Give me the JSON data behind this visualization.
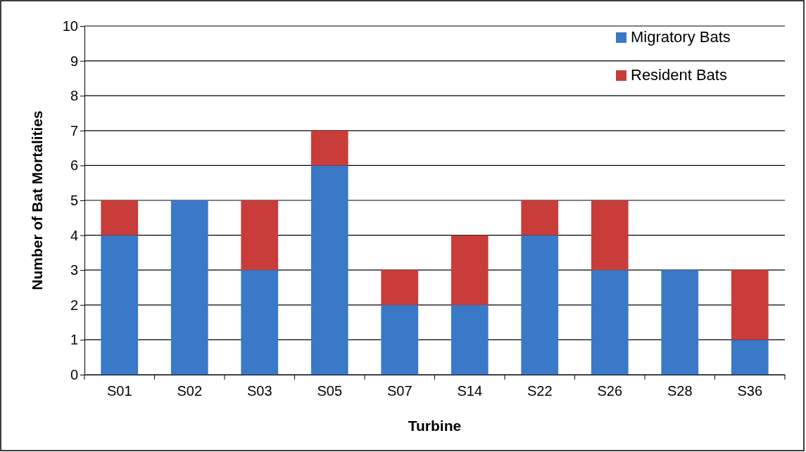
{
  "chart_data": {
    "type": "bar",
    "stacked": true,
    "xlabel": "Turbine",
    "ylabel": "Number of Bat Mortalities",
    "categories": [
      "S01",
      "S02",
      "S03",
      "S05",
      "S07",
      "S14",
      "S22",
      "S26",
      "S28",
      "S36"
    ],
    "series": [
      {
        "name": "Migratory Bats",
        "color": "#3a78c8",
        "values": [
          4,
          5,
          3,
          6,
          2,
          2,
          4,
          3,
          3,
          1
        ]
      },
      {
        "name": "Resident Bats",
        "color": "#c83c3a",
        "values": [
          1,
          0,
          2,
          1,
          1,
          2,
          1,
          2,
          0,
          2
        ]
      }
    ],
    "ylim": [
      0,
      10
    ],
    "yticks": [
      0,
      1,
      2,
      3,
      4,
      5,
      6,
      7,
      8,
      9,
      10
    ],
    "grid": "y",
    "legend": "top right"
  }
}
